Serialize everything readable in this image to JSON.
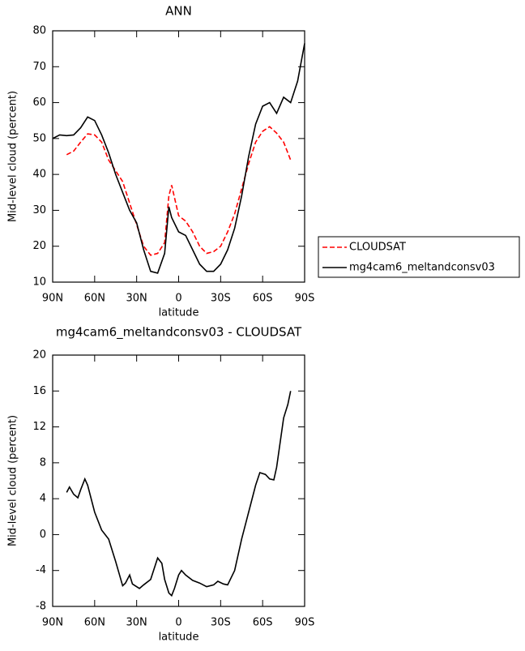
{
  "chart_data": [
    {
      "type": "line",
      "title": "ANN",
      "xlabel": "latitude",
      "ylabel": "Mid-level cloud (percent)",
      "x": [
        90,
        85,
        80,
        75,
        70,
        65,
        60,
        55,
        50,
        45,
        40,
        35,
        30,
        25,
        20,
        15,
        10,
        7,
        5,
        0,
        -5,
        -10,
        -15,
        -20,
        -25,
        -30,
        -35,
        -40,
        -45,
        -50,
        -55,
        -60,
        -65,
        -70,
        -75,
        -80,
        -85,
        -90
      ],
      "series": [
        {
          "name": "CLOUDSAT",
          "color": "#ff0000",
          "style": "dashed",
          "values": [
            null,
            null,
            45.5,
            46.5,
            49,
            51.3,
            51,
            49,
            44,
            41,
            38,
            32,
            26,
            20,
            17.5,
            18,
            21,
            34,
            37,
            28.5,
            27,
            24,
            20,
            18,
            18.5,
            20,
            24,
            29,
            36,
            43,
            49,
            52,
            53.3,
            51.5,
            49,
            44,
            null,
            null
          ]
        },
        {
          "name": "mg4cam6_meltandconsv03",
          "color": "#000000",
          "style": "solid",
          "values": [
            50,
            51,
            50.8,
            51,
            53,
            56,
            55,
            51,
            46,
            40,
            35,
            30,
            26.5,
            19,
            13,
            12.5,
            18,
            31,
            28,
            24,
            23,
            19,
            15,
            13,
            13,
            15,
            19,
            25,
            34,
            45,
            54,
            59,
            60,
            57,
            61.5,
            60,
            66,
            76.5
          ]
        }
      ],
      "xlim": [
        90,
        -90
      ],
      "xticks": [
        {
          "value": 90,
          "label": "90N"
        },
        {
          "value": 60,
          "label": "60N"
        },
        {
          "value": 30,
          "label": "30N"
        },
        0,
        {
          "value": -30,
          "label": "30S"
        },
        {
          "value": -60,
          "label": "60S"
        },
        {
          "value": -90,
          "label": "90S"
        }
      ],
      "ylim": [
        10,
        80
      ],
      "yticks": [
        10,
        20,
        30,
        40,
        50,
        60,
        70,
        80
      ],
      "legend": "right"
    },
    {
      "type": "line",
      "title": "mg4cam6_meltandconsv03 - CLOUDSAT",
      "xlabel": "latitude",
      "ylabel": "Mid-level cloud (percent)",
      "x": [
        80,
        78,
        75,
        72,
        70,
        67,
        65,
        60,
        55,
        50,
        45,
        40,
        38,
        35,
        33,
        30,
        28,
        25,
        20,
        15,
        12,
        10,
        7,
        5,
        3,
        0,
        -2,
        -5,
        -10,
        -15,
        -20,
        -25,
        -28,
        -32,
        -35,
        -40,
        -45,
        -50,
        -55,
        -58,
        -62,
        -65,
        -68,
        -70,
        -75,
        -78,
        -80
      ],
      "series": [
        {
          "name": "mg4cam6_meltandconsv03 - CLOUDSAT",
          "color": "#000000",
          "style": "solid",
          "values": [
            4.7,
            5.3,
            4.5,
            4.1,
            5,
            6.2,
            5.5,
            2.5,
            0.5,
            -0.5,
            -3,
            -5.7,
            -5.4,
            -4.5,
            -5.5,
            -5.8,
            -6,
            -5.6,
            -5,
            -2.6,
            -3.2,
            -5,
            -6.5,
            -6.8,
            -6,
            -4.5,
            -4,
            -4.5,
            -5.1,
            -5.4,
            -5.8,
            -5.6,
            -5.2,
            -5.5,
            -5.6,
            -4,
            -0.5,
            2.5,
            5.5,
            6.9,
            6.7,
            6.2,
            6.1,
            7.5,
            13,
            14.5,
            16
          ]
        }
      ],
      "xlim": [
        90,
        -90
      ],
      "xticks": [
        {
          "value": 90,
          "label": "90N"
        },
        {
          "value": 60,
          "label": "60N"
        },
        {
          "value": 30,
          "label": "30N"
        },
        0,
        {
          "value": -30,
          "label": "30S"
        },
        {
          "value": -60,
          "label": "60S"
        },
        {
          "value": -90,
          "label": "90S"
        }
      ],
      "ylim": [
        -8,
        20
      ],
      "yticks": [
        -8,
        -4,
        0,
        4,
        8,
        12,
        16,
        20
      ]
    }
  ]
}
